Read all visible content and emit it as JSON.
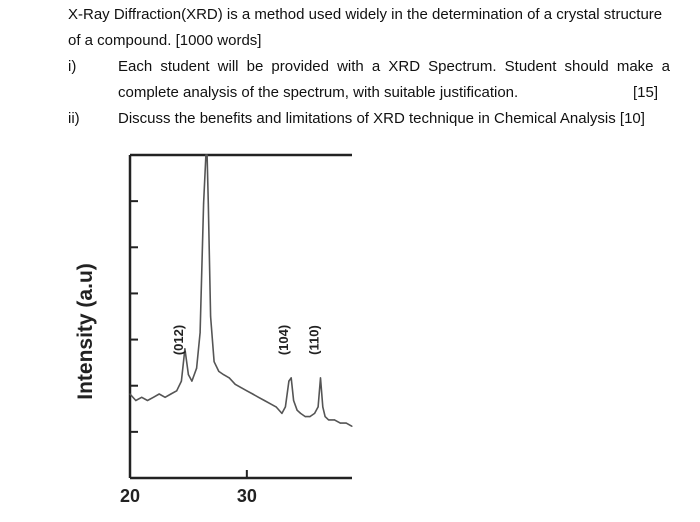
{
  "document": {
    "intro_line_1": "X-Ray Diffraction(XRD) is a method used widely in the determination of a crystal structure",
    "intro_line_2": "of a compound. [1000 words]",
    "items": [
      {
        "number": "i)",
        "line_1": "Each student will be provided with a XRD Spectrum. Student should make a",
        "line_2": "complete analysis of the spectrum, with suitable justification.",
        "marks": "[15]"
      },
      {
        "number": "ii)",
        "line_1": "Discuss the benefits and limitations of XRD technique in Chemical Analysis [10]"
      }
    ]
  },
  "chart_data": {
    "type": "line",
    "ylabel": "Intensity (a.u)",
    "xlabel": "",
    "x_tick_labels": [
      "20",
      "30"
    ],
    "x_ticks": [
      20,
      30
    ],
    "xlim": [
      20,
      39
    ],
    "ylim": [
      0,
      100
    ],
    "grid": false,
    "series": [
      {
        "x": [
          20.0,
          20.5,
          21.0,
          21.5,
          22.0,
          22.5,
          23.0,
          23.5,
          24.0,
          24.4,
          24.7,
          25.0,
          25.3,
          25.7,
          26.0,
          26.3,
          26.5,
          26.6,
          26.7,
          26.9,
          27.2,
          27.6,
          28.0,
          28.5,
          29.0,
          29.5,
          30.0,
          30.5,
          31.0,
          31.5,
          32.0,
          32.5,
          33.0,
          33.3,
          33.6,
          33.8,
          34.0,
          34.3,
          34.6,
          35.0,
          35.4,
          35.8,
          36.1,
          36.3,
          36.5,
          36.7,
          37.0,
          37.5,
          38.0,
          38.5,
          39.0
        ],
        "y": [
          26,
          24,
          25,
          24,
          25,
          26,
          25,
          26,
          27,
          30,
          40,
          32,
          30,
          34,
          45,
          85,
          100,
          100,
          85,
          50,
          36,
          33,
          32,
          31,
          29,
          28,
          27,
          26,
          25,
          24,
          23,
          22,
          20,
          22,
          30,
          31,
          24,
          21,
          20,
          19,
          19,
          20,
          22,
          31,
          22,
          19,
          18,
          18,
          17,
          17,
          16
        ]
      }
    ],
    "annotations": [
      {
        "label": "(012)",
        "x": 24.7
      },
      {
        "label": "(104)",
        "x": 33.7
      },
      {
        "label": "(110)",
        "x": 36.3
      }
    ]
  }
}
